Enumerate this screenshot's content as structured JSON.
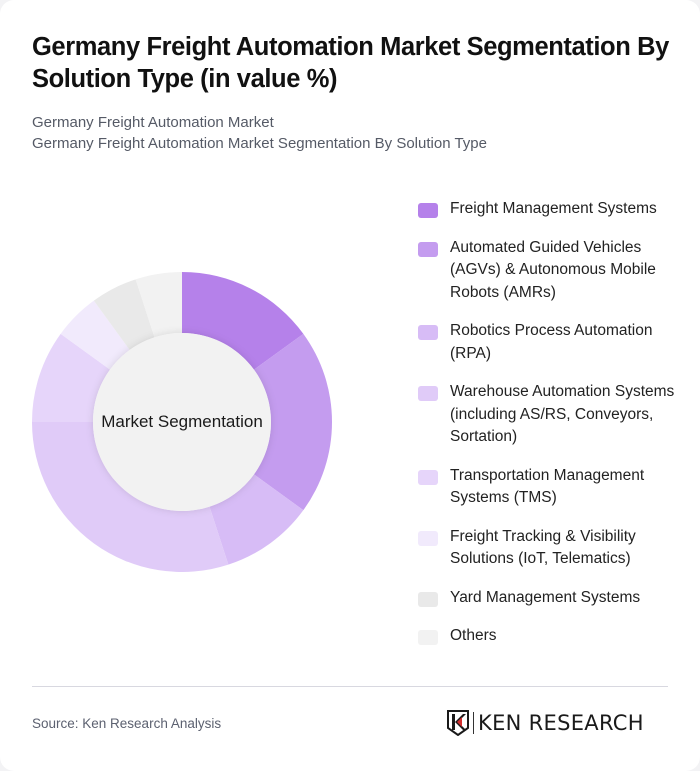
{
  "header": {
    "title": "Germany Freight Automation Market Segmentation By Solution Type (in value %)",
    "subtitle_line1": "Germany Freight Automation Market",
    "subtitle_line2": "Germany Freight Automation Market Segmentation By Solution Type"
  },
  "chart": {
    "center_label": "Market Segmentation"
  },
  "legend": {
    "items": [
      {
        "label": "Freight Management Systems",
        "color": "#b581ea"
      },
      {
        "label": "Automated Guided Vehicles (AGVs) & Autonomous Mobile Robots (AMRs)",
        "color": "#c49cef"
      },
      {
        "label": "Robotics Process Automation (RPA)",
        "color": "#d7bcf6"
      },
      {
        "label": "Warehouse Automation Systems (including AS/RS, Conveyors, Sortation)",
        "color": "#e0cbf8"
      },
      {
        "label": "Transportation Management Systems (TMS)",
        "color": "#e6d5fa"
      },
      {
        "label": "Freight Tracking & Visibility Solutions (IoT, Telematics)",
        "color": "#f1eafc"
      },
      {
        "label": "Yard Management Systems",
        "color": "#e9e9e9"
      },
      {
        "label": "Others",
        "color": "#f2f2f2"
      }
    ]
  },
  "footer": {
    "source": "Source: Ken Research Analysis",
    "logo_text": "KEN RESEARCH",
    "logo_icon": "ken-research-k-shield-icon"
  },
  "chart_data": {
    "type": "pie",
    "variant": "donut",
    "title": "Germany Freight Automation Market Segmentation By Solution Type (in value %)",
    "subtitle": "Germany Freight Automation Market Segmentation By Solution Type",
    "center_label": "Market Segmentation",
    "categories": [
      "Freight Management Systems",
      "Automated Guided Vehicles (AGVs) & Autonomous Mobile Robots (AMRs)",
      "Robotics Process Automation (RPA)",
      "Warehouse Automation Systems (including AS/RS, Conveyors, Sortation)",
      "Transportation Management Systems (TMS)",
      "Freight Tracking & Visibility Solutions (IoT, Telematics)",
      "Yard Management Systems",
      "Others"
    ],
    "values": [
      15,
      20,
      10,
      30,
      10,
      5,
      5,
      5
    ],
    "unit": "%",
    "colors": [
      "#b581ea",
      "#c49cef",
      "#d7bcf6",
      "#e0cbf8",
      "#e6d5fa",
      "#f1eafc",
      "#e9e9e9",
      "#f2f2f2"
    ],
    "start_angle_deg": 0,
    "direction": "clockwise",
    "legend_position": "right",
    "source": "Source: Ken Research Analysis"
  }
}
